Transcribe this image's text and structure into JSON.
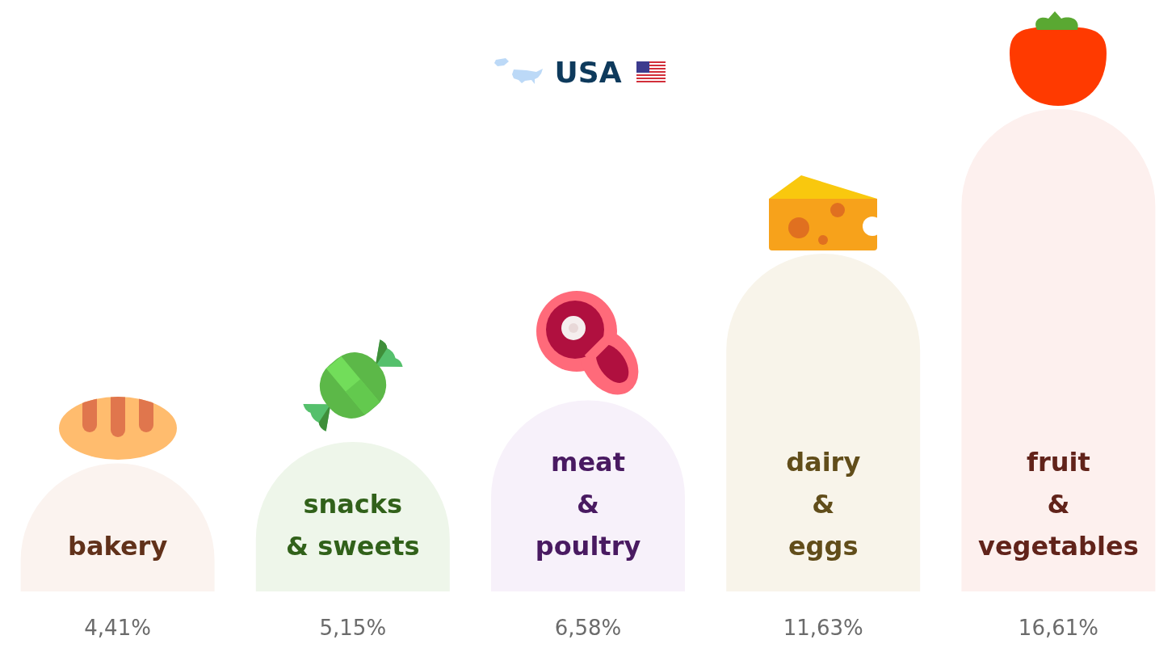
{
  "chart_data": {
    "type": "bar",
    "title": "USA",
    "categories": [
      "bakery",
      "snacks\n& sweets",
      "meat\n&\npoultry",
      "dairy\n&\neggs",
      "fruit\n&\nvegetables"
    ],
    "values": [
      4.41,
      5.15,
      6.58,
      11.63,
      16.61
    ],
    "value_labels": [
      "4,41%",
      "5,15%",
      "6,58%",
      "11,63%",
      "16,61%"
    ],
    "colors": [
      "#fbf3ef",
      "#eef6ea",
      "#f7f1fa",
      "#f8f4ea",
      "#fdf0ee"
    ]
  }
}
